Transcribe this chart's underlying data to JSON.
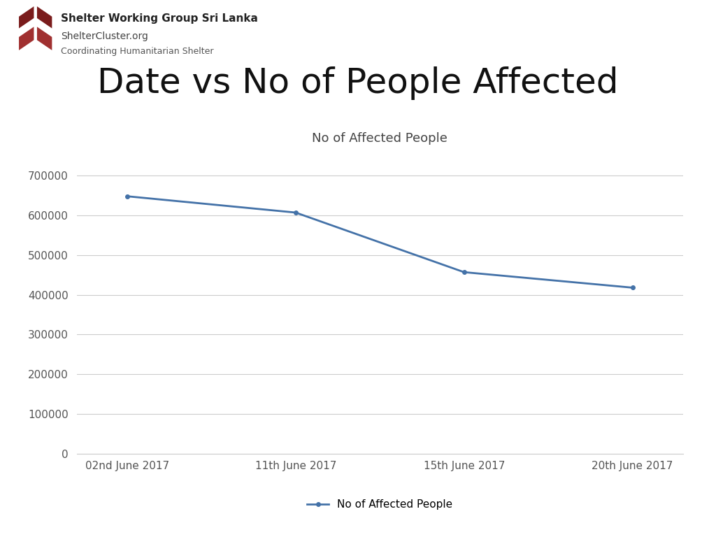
{
  "title": "Date vs No of People Affected",
  "chart_title": "No of Affected People",
  "dates": [
    "02nd June 2017",
    "11th June 2017",
    "15th June 2017",
    "20th June 2017"
  ],
  "values": [
    648000,
    607000,
    457000,
    418000
  ],
  "line_color": "#4472a8",
  "line_width": 2.0,
  "marker": "o",
  "marker_size": 4,
  "ylim": [
    0,
    750000
  ],
  "yticks": [
    0,
    100000,
    200000,
    300000,
    400000,
    500000,
    600000,
    700000
  ],
  "legend_label": "No of Affected People",
  "grid_color": "#cccccc",
  "title_fontsize": 36,
  "chart_title_fontsize": 13,
  "tick_fontsize": 11,
  "legend_fontsize": 11,
  "bg_color": "#ffffff",
  "header_org": "Shelter Working Group Sri Lanka",
  "header_url": "ShelterCluster.org",
  "header_sub": "Coordinating Humanitarian Shelter"
}
